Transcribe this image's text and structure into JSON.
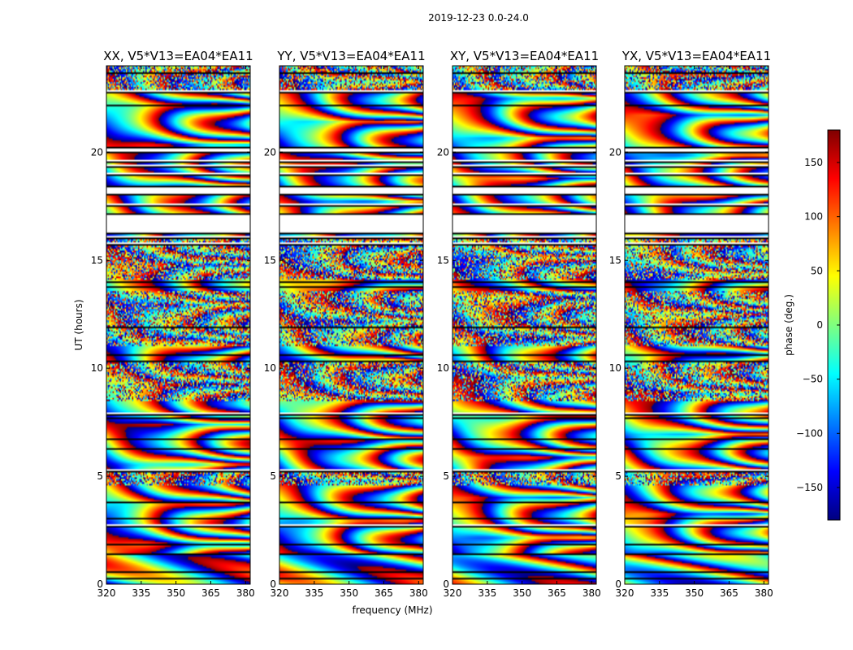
{
  "figure": {
    "suptitle": "2019-12-23 0.0-24.0",
    "xlabel": "frequency (MHz)",
    "ylabel": "UT (hours)",
    "colorbar_label": "phase (deg.)",
    "colorbar_ticks": [
      "150",
      "100",
      "50",
      "0",
      "−50",
      "−100",
      "−150"
    ],
    "colorbar_tick_values": [
      150,
      100,
      50,
      0,
      -50,
      -100,
      -150
    ],
    "colorbar_range": [
      -180,
      180
    ],
    "colormap": [
      "#00007f",
      "#0000ff",
      "#007fff",
      "#00ffff",
      "#7fff7f",
      "#ffff00",
      "#ff7f00",
      "#ff0000",
      "#7f0000"
    ]
  },
  "chart_data": [
    {
      "type": "heatmap",
      "title": "XX, V5*V13=EA04*EA11",
      "xlabel": "frequency (MHz)",
      "ylabel": "UT (hours)",
      "xlim": [
        320,
        382
      ],
      "ylim": [
        0,
        24
      ],
      "xticks": [
        320,
        335,
        350,
        365,
        380
      ],
      "xtick_labels": [
        "320",
        "335",
        "350",
        "365",
        "380"
      ],
      "yticks": [
        0,
        5,
        10,
        15,
        20
      ],
      "ytick_labels": [
        "0",
        "5",
        "10",
        "15",
        "20"
      ],
      "value_range": [
        -180,
        180
      ]
    },
    {
      "type": "heatmap",
      "title": "YY, V5*V13=EA04*EA11",
      "xlabel": "frequency (MHz)",
      "ylabel": "UT (hours)",
      "xlim": [
        320,
        382
      ],
      "ylim": [
        0,
        24
      ],
      "xticks": [
        320,
        335,
        350,
        365,
        380
      ],
      "xtick_labels": [
        "320",
        "335",
        "350",
        "365",
        "380"
      ],
      "yticks": [
        0,
        5,
        10,
        15,
        20
      ],
      "ytick_labels": [
        "0",
        "5",
        "10",
        "15",
        "20"
      ],
      "value_range": [
        -180,
        180
      ]
    },
    {
      "type": "heatmap",
      "title": "XY, V5*V13=EA04*EA11",
      "xlabel": "frequency (MHz)",
      "ylabel": "UT (hours)",
      "xlim": [
        320,
        382
      ],
      "ylim": [
        0,
        24
      ],
      "xticks": [
        320,
        335,
        350,
        365,
        380
      ],
      "xtick_labels": [
        "320",
        "335",
        "350",
        "365",
        "380"
      ],
      "yticks": [
        0,
        5,
        10,
        15,
        20
      ],
      "ytick_labels": [
        "0",
        "5",
        "10",
        "15",
        "20"
      ],
      "value_range": [
        -180,
        180
      ]
    },
    {
      "type": "heatmap",
      "title": "YX, V5*V13=EA04*EA11",
      "xlabel": "frequency (MHz)",
      "ylabel": "UT (hours)",
      "xlim": [
        320,
        382
      ],
      "ylim": [
        0,
        24
      ],
      "xticks": [
        320,
        335,
        350,
        365,
        380
      ],
      "xtick_labels": [
        "320",
        "335",
        "350",
        "365",
        "380"
      ],
      "yticks": [
        0,
        5,
        10,
        15,
        20
      ],
      "ytick_labels": [
        "0",
        "5",
        "10",
        "15",
        "20"
      ],
      "value_range": [
        -180,
        180
      ]
    }
  ]
}
